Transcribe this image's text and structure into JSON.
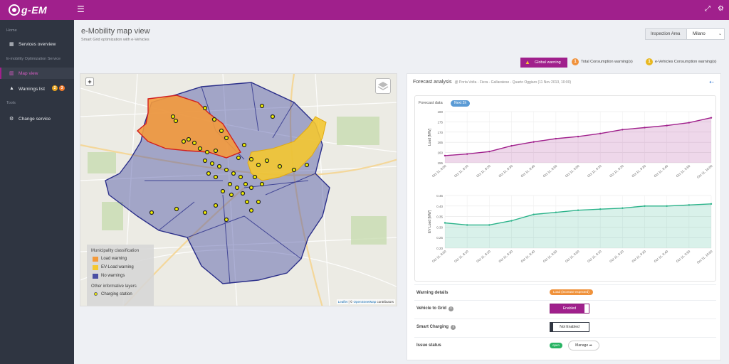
{
  "app": {
    "logo_text": "g-EM",
    "menu_icon": "hamburger-icon",
    "top_icons": [
      "expand-icon",
      "gear-icon"
    ]
  },
  "sidebar": {
    "section_home": "Home",
    "section_opt": "E-mobility Optimization Service",
    "section_tools": "Tools",
    "items": [
      {
        "label": "Services overview",
        "icon": "grid-icon",
        "active": false
      },
      {
        "label": "Map view",
        "icon": "map-icon",
        "active": true
      },
      {
        "label": "Warnings list",
        "icon": "warning-icon",
        "active": false,
        "badges": [
          "2",
          "3"
        ]
      },
      {
        "label": "Change service",
        "icon": "cogs-icon",
        "active": false
      }
    ]
  },
  "header": {
    "title": "e-Mobility map view",
    "subtitle": "Smart Grid optimization with e-Vehicles",
    "inspection_label": "Inspection Area",
    "inspection_value": "Milano"
  },
  "warnings": {
    "global": "Global warning",
    "total": {
      "count": "1",
      "label": "Total Consumption warning(s)"
    },
    "ev": {
      "count": "1",
      "label": "e-Vehicles Consumption warning(s)"
    }
  },
  "map": {
    "zoom_label": "+",
    "legend_title": "Municipality classification",
    "legend_items": [
      {
        "label": "Load warning",
        "color": "#f39a3c"
      },
      {
        "label": "EV-Load warning",
        "color": "#f4c830"
      },
      {
        "label": "No warnings",
        "color": "#4a4fa3"
      }
    ],
    "other_title": "Other informative layers",
    "charging_label": "Charging station",
    "attribution_leaflet": "Leaflet",
    "attribution_sep": " | © ",
    "attribution_osm": "OpenStreetMap",
    "attribution_end": " contributors"
  },
  "forecast": {
    "title": "Forecast analysis",
    "subtitle": "@ Porta Volta - Fiera - Gallaratese - Quarto Oggiaro (11 Nov 2013, 10:00)",
    "data_label": "Forecast data",
    "next_label": "Next 2h"
  },
  "chart_data": [
    {
      "type": "area",
      "ylabel": "Load [MW]",
      "ylim": [
        155,
        180
      ],
      "yticks": [
        "180",
        "175",
        "170",
        "165",
        "160",
        "155"
      ],
      "x": [
        "Oct 11, 8:00",
        "Oct 11, 8:10",
        "Oct 11, 8:20",
        "Oct 11, 8:30",
        "Oct 11, 8:40",
        "Oct 11, 8:50",
        "Oct 11, 9:00",
        "Oct 11, 9:10",
        "Oct 11, 9:20",
        "Oct 11, 9:30",
        "Oct 11, 9:40",
        "Oct 11, 9:50",
        "Oct 11, 10:00"
      ],
      "values": [
        158.5,
        159.3,
        160.5,
        163.3,
        165.2,
        166.8,
        167.8,
        169.3,
        171.2,
        172.2,
        173.2,
        174.6,
        177.0
      ],
      "color": "#a0208c"
    },
    {
      "type": "area",
      "ylabel": "EV Load [MW]",
      "ylim": [
        0.2,
        0.45
      ],
      "yticks": [
        "0.45",
        "0.40",
        "0.35",
        "0.30",
        "0.25",
        "0.20"
      ],
      "x": [
        "Oct 11, 8:00",
        "Oct 11, 8:10",
        "Oct 11, 8:20",
        "Oct 11, 8:30",
        "Oct 11, 8:40",
        "Oct 11, 8:50",
        "Oct 11, 9:00",
        "Oct 11, 9:10",
        "Oct 11, 9:20",
        "Oct 11, 9:30",
        "Oct 11, 9:40",
        "Oct 11, 9:50",
        "Oct 11, 10:00"
      ],
      "values": [
        0.32,
        0.31,
        0.31,
        0.33,
        0.36,
        0.37,
        0.38,
        0.385,
        0.39,
        0.4,
        0.4,
        0.405,
        0.41
      ],
      "color": "#2bb38a"
    }
  ],
  "details": {
    "warning_label": "Warning details",
    "warning_value": "Load (increase expected)",
    "v2g_label": "Vehicle to Grid",
    "v2g_value": "Enabled",
    "smart_label": "Smart Charging",
    "smart_value": "Not Enabled",
    "issue_label": "Issue status",
    "issue_value": "open",
    "manage_label": "Manage"
  }
}
